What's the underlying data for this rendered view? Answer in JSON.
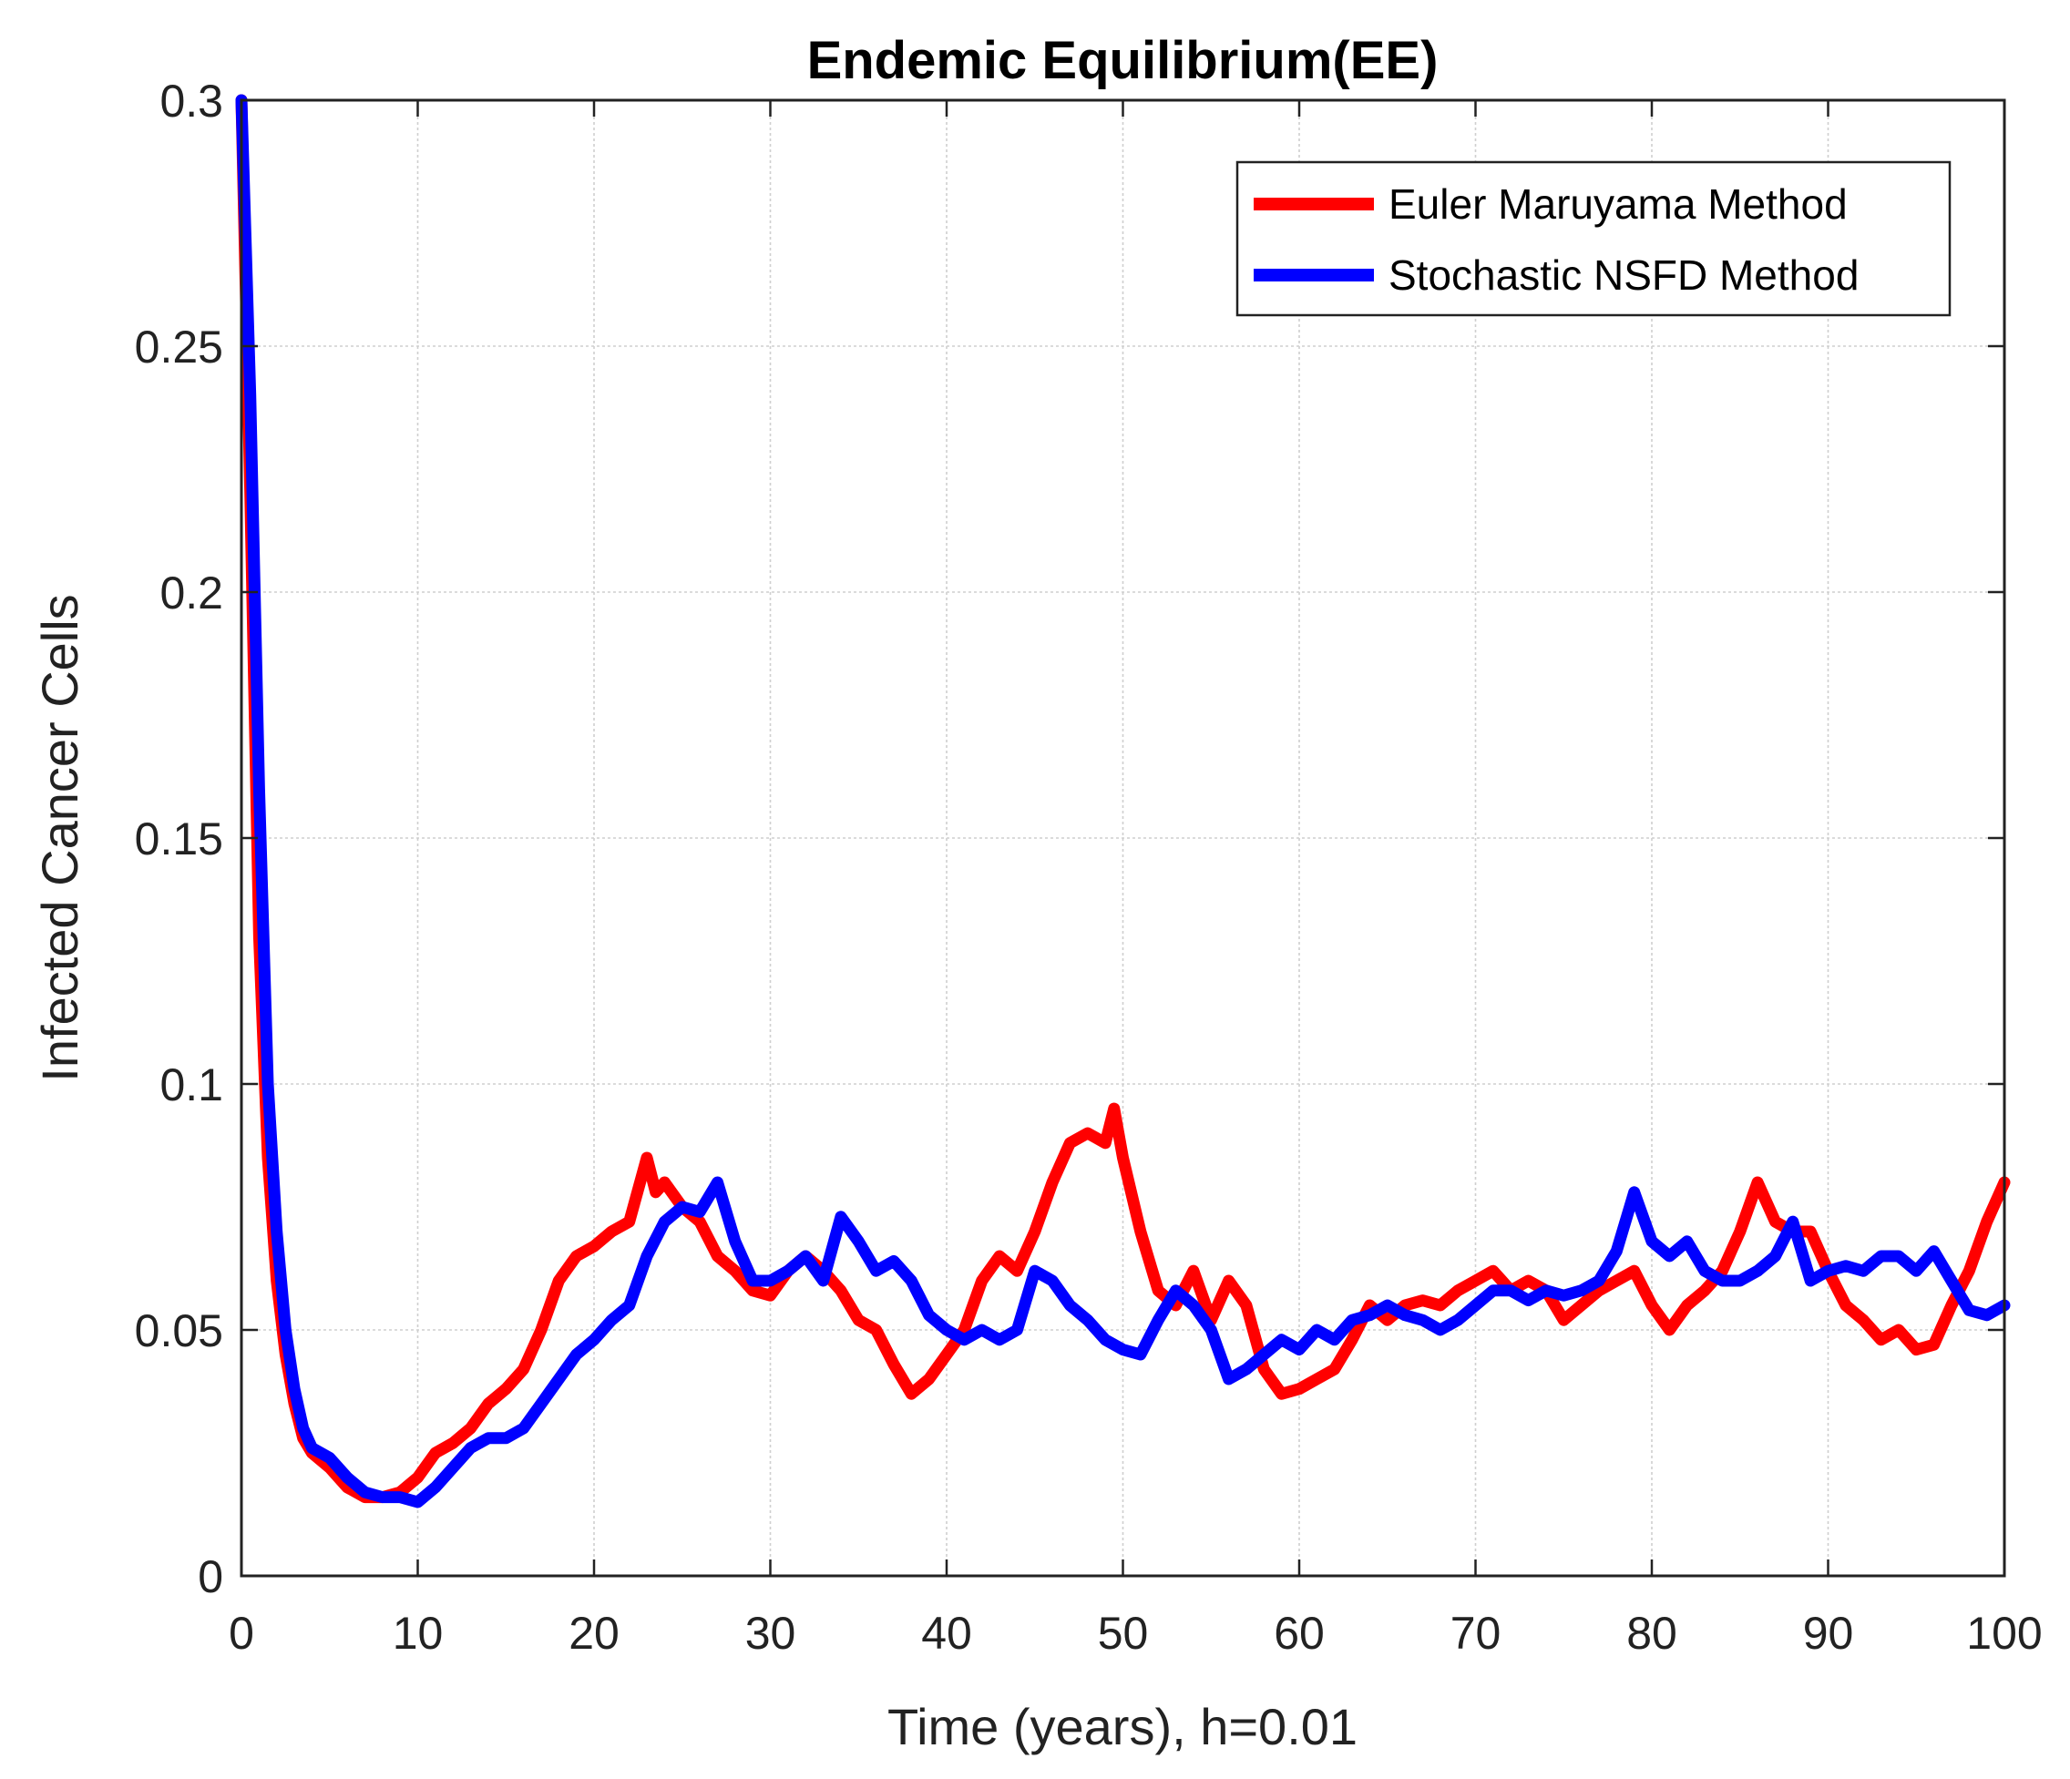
{
  "chart_data": {
    "type": "line",
    "title": "Endemic Equilibrium(EE)",
    "xlabel": "Time (years), h=0.01",
    "ylabel": "Infected Cancer Cells",
    "xlim": [
      0,
      100
    ],
    "ylim": [
      0,
      0.3
    ],
    "xticks": [
      0,
      10,
      20,
      30,
      40,
      50,
      60,
      70,
      80,
      90,
      100
    ],
    "xtick_labels": [
      "0",
      "10",
      "20",
      "30",
      "40",
      "50",
      "60",
      "70",
      "80",
      "90",
      "100"
    ],
    "yticks": [
      0,
      0.05,
      0.1,
      0.15,
      0.2,
      0.25,
      0.3
    ],
    "ytick_labels": [
      "0",
      "0.05",
      "0.1",
      "0.15",
      "0.2",
      "0.25",
      "0.3"
    ],
    "grid": true,
    "legend_position": "top-right",
    "series": [
      {
        "name": "Euler Maruyama Method",
        "color": "#ff0000",
        "x": [
          0,
          0.5,
          1,
          1.5,
          2,
          2.5,
          3,
          3.5,
          4,
          5,
          6,
          7,
          8,
          9,
          10,
          11,
          12,
          13,
          14,
          15,
          16,
          17,
          18,
          19,
          20,
          21,
          22,
          23,
          23.5,
          24,
          25,
          26,
          27,
          28,
          29,
          30,
          31,
          32,
          33,
          34,
          35,
          36,
          37,
          38,
          39,
          40,
          41,
          42,
          43,
          44,
          45,
          46,
          47,
          48,
          49,
          49.5,
          50,
          51,
          52,
          53,
          54,
          55,
          56,
          57,
          58,
          59,
          60,
          61,
          62,
          63,
          64,
          65,
          66,
          67,
          68,
          69,
          70,
          71,
          72,
          73,
          74,
          75,
          76,
          77,
          78,
          79,
          80,
          81,
          82,
          83,
          84,
          85,
          86,
          87,
          88,
          89,
          90,
          91,
          92,
          93,
          94,
          95,
          96,
          97,
          98,
          99,
          100
        ],
        "values": [
          0.3,
          0.22,
          0.13,
          0.085,
          0.06,
          0.045,
          0.035,
          0.028,
          0.025,
          0.022,
          0.018,
          0.016,
          0.016,
          0.017,
          0.02,
          0.025,
          0.027,
          0.03,
          0.035,
          0.038,
          0.042,
          0.05,
          0.06,
          0.065,
          0.067,
          0.07,
          0.072,
          0.085,
          0.078,
          0.08,
          0.075,
          0.072,
          0.065,
          0.062,
          0.058,
          0.057,
          0.062,
          0.065,
          0.062,
          0.058,
          0.052,
          0.05,
          0.043,
          0.037,
          0.04,
          0.045,
          0.05,
          0.06,
          0.065,
          0.062,
          0.07,
          0.08,
          0.088,
          0.09,
          0.088,
          0.095,
          0.085,
          0.07,
          0.058,
          0.055,
          0.062,
          0.052,
          0.06,
          0.055,
          0.042,
          0.037,
          0.038,
          0.04,
          0.042,
          0.048,
          0.055,
          0.052,
          0.055,
          0.056,
          0.055,
          0.058,
          0.06,
          0.062,
          0.058,
          0.06,
          0.058,
          0.052,
          0.055,
          0.058,
          0.06,
          0.062,
          0.055,
          0.05,
          0.055,
          0.058,
          0.062,
          0.07,
          0.08,
          0.072,
          0.07,
          0.07,
          0.062,
          0.055,
          0.052,
          0.048,
          0.05,
          0.046,
          0.047,
          0.055,
          0.062,
          0.072,
          0.08
        ]
      },
      {
        "name": "Stochastic NSFD Method",
        "color": "#0000ff",
        "x": [
          0,
          0.5,
          1,
          1.5,
          2,
          2.5,
          3,
          3.5,
          4,
          5,
          6,
          7,
          8,
          9,
          10,
          11,
          12,
          13,
          14,
          15,
          16,
          17,
          18,
          19,
          20,
          21,
          22,
          23,
          24,
          25,
          26,
          27,
          28,
          29,
          30,
          31,
          32,
          33,
          34,
          35,
          36,
          37,
          38,
          39,
          40,
          41,
          42,
          43,
          44,
          45,
          46,
          47,
          48,
          49,
          50,
          51,
          52,
          53,
          54,
          55,
          56,
          57,
          58,
          59,
          60,
          61,
          62,
          63,
          64,
          65,
          66,
          67,
          68,
          69,
          70,
          71,
          72,
          73,
          74,
          75,
          76,
          77,
          78,
          79,
          80,
          81,
          82,
          83,
          84,
          85,
          86,
          87,
          88,
          89,
          90,
          91,
          92,
          93,
          94,
          95,
          96,
          97,
          98,
          99,
          100
        ],
        "values": [
          0.3,
          0.24,
          0.16,
          0.1,
          0.07,
          0.05,
          0.038,
          0.03,
          0.026,
          0.024,
          0.02,
          0.017,
          0.016,
          0.016,
          0.015,
          0.018,
          0.022,
          0.026,
          0.028,
          0.028,
          0.03,
          0.035,
          0.04,
          0.045,
          0.048,
          0.052,
          0.055,
          0.065,
          0.072,
          0.075,
          0.074,
          0.08,
          0.068,
          0.06,
          0.06,
          0.062,
          0.065,
          0.06,
          0.073,
          0.068,
          0.062,
          0.064,
          0.06,
          0.053,
          0.05,
          0.048,
          0.05,
          0.048,
          0.05,
          0.062,
          0.06,
          0.055,
          0.052,
          0.048,
          0.046,
          0.045,
          0.052,
          0.058,
          0.055,
          0.05,
          0.04,
          0.042,
          0.045,
          0.048,
          0.046,
          0.05,
          0.048,
          0.052,
          0.053,
          0.055,
          0.053,
          0.052,
          0.05,
          0.052,
          0.055,
          0.058,
          0.058,
          0.056,
          0.058,
          0.057,
          0.058,
          0.06,
          0.066,
          0.078,
          0.068,
          0.065,
          0.068,
          0.062,
          0.06,
          0.06,
          0.062,
          0.065,
          0.072,
          0.06,
          0.062,
          0.063,
          0.062,
          0.065,
          0.065,
          0.062,
          0.066,
          0.06,
          0.054,
          0.053,
          0.055
        ]
      }
    ]
  }
}
